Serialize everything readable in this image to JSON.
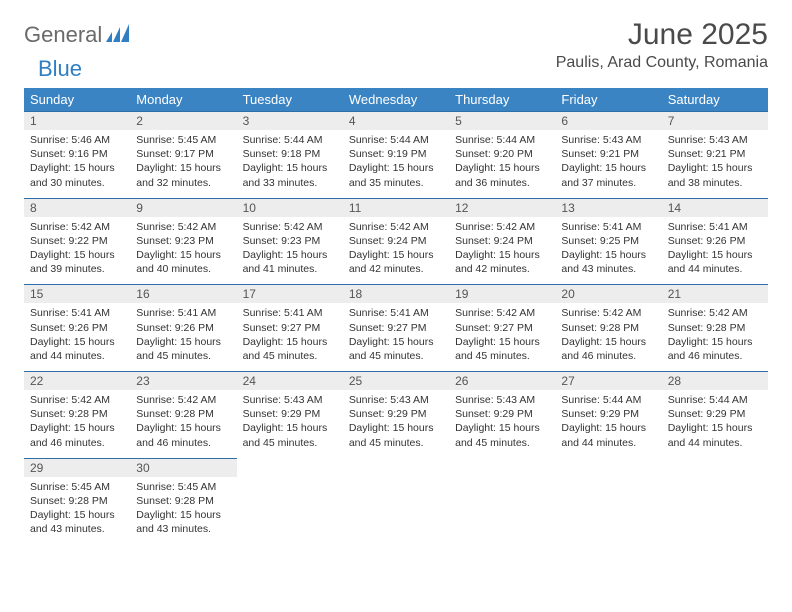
{
  "logo": {
    "text1": "General",
    "text2": "Blue"
  },
  "title": "June 2025",
  "location": "Paulis, Arad County, Romania",
  "day_headers": [
    "Sunday",
    "Monday",
    "Tuesday",
    "Wednesday",
    "Thursday",
    "Friday",
    "Saturday"
  ],
  "header_bg": "#3b84c4",
  "header_fg": "#ffffff",
  "daynum_bg": "#ededed",
  "daynum_border": "#2f6fa8",
  "weeks": [
    [
      {
        "n": "1",
        "sr": "5:46 AM",
        "ss": "9:16 PM",
        "dl": "15 hours and 30 minutes."
      },
      {
        "n": "2",
        "sr": "5:45 AM",
        "ss": "9:17 PM",
        "dl": "15 hours and 32 minutes."
      },
      {
        "n": "3",
        "sr": "5:44 AM",
        "ss": "9:18 PM",
        "dl": "15 hours and 33 minutes."
      },
      {
        "n": "4",
        "sr": "5:44 AM",
        "ss": "9:19 PM",
        "dl": "15 hours and 35 minutes."
      },
      {
        "n": "5",
        "sr": "5:44 AM",
        "ss": "9:20 PM",
        "dl": "15 hours and 36 minutes."
      },
      {
        "n": "6",
        "sr": "5:43 AM",
        "ss": "9:21 PM",
        "dl": "15 hours and 37 minutes."
      },
      {
        "n": "7",
        "sr": "5:43 AM",
        "ss": "9:21 PM",
        "dl": "15 hours and 38 minutes."
      }
    ],
    [
      {
        "n": "8",
        "sr": "5:42 AM",
        "ss": "9:22 PM",
        "dl": "15 hours and 39 minutes."
      },
      {
        "n": "9",
        "sr": "5:42 AM",
        "ss": "9:23 PM",
        "dl": "15 hours and 40 minutes."
      },
      {
        "n": "10",
        "sr": "5:42 AM",
        "ss": "9:23 PM",
        "dl": "15 hours and 41 minutes."
      },
      {
        "n": "11",
        "sr": "5:42 AM",
        "ss": "9:24 PM",
        "dl": "15 hours and 42 minutes."
      },
      {
        "n": "12",
        "sr": "5:42 AM",
        "ss": "9:24 PM",
        "dl": "15 hours and 42 minutes."
      },
      {
        "n": "13",
        "sr": "5:41 AM",
        "ss": "9:25 PM",
        "dl": "15 hours and 43 minutes."
      },
      {
        "n": "14",
        "sr": "5:41 AM",
        "ss": "9:26 PM",
        "dl": "15 hours and 44 minutes."
      }
    ],
    [
      {
        "n": "15",
        "sr": "5:41 AM",
        "ss": "9:26 PM",
        "dl": "15 hours and 44 minutes."
      },
      {
        "n": "16",
        "sr": "5:41 AM",
        "ss": "9:26 PM",
        "dl": "15 hours and 45 minutes."
      },
      {
        "n": "17",
        "sr": "5:41 AM",
        "ss": "9:27 PM",
        "dl": "15 hours and 45 minutes."
      },
      {
        "n": "18",
        "sr": "5:41 AM",
        "ss": "9:27 PM",
        "dl": "15 hours and 45 minutes."
      },
      {
        "n": "19",
        "sr": "5:42 AM",
        "ss": "9:27 PM",
        "dl": "15 hours and 45 minutes."
      },
      {
        "n": "20",
        "sr": "5:42 AM",
        "ss": "9:28 PM",
        "dl": "15 hours and 46 minutes."
      },
      {
        "n": "21",
        "sr": "5:42 AM",
        "ss": "9:28 PM",
        "dl": "15 hours and 46 minutes."
      }
    ],
    [
      {
        "n": "22",
        "sr": "5:42 AM",
        "ss": "9:28 PM",
        "dl": "15 hours and 46 minutes."
      },
      {
        "n": "23",
        "sr": "5:42 AM",
        "ss": "9:28 PM",
        "dl": "15 hours and 46 minutes."
      },
      {
        "n": "24",
        "sr": "5:43 AM",
        "ss": "9:29 PM",
        "dl": "15 hours and 45 minutes."
      },
      {
        "n": "25",
        "sr": "5:43 AM",
        "ss": "9:29 PM",
        "dl": "15 hours and 45 minutes."
      },
      {
        "n": "26",
        "sr": "5:43 AM",
        "ss": "9:29 PM",
        "dl": "15 hours and 45 minutes."
      },
      {
        "n": "27",
        "sr": "5:44 AM",
        "ss": "9:29 PM",
        "dl": "15 hours and 44 minutes."
      },
      {
        "n": "28",
        "sr": "5:44 AM",
        "ss": "9:29 PM",
        "dl": "15 hours and 44 minutes."
      }
    ],
    [
      {
        "n": "29",
        "sr": "5:45 AM",
        "ss": "9:28 PM",
        "dl": "15 hours and 43 minutes."
      },
      {
        "n": "30",
        "sr": "5:45 AM",
        "ss": "9:28 PM",
        "dl": "15 hours and 43 minutes."
      },
      null,
      null,
      null,
      null,
      null
    ]
  ],
  "labels": {
    "sunrise": "Sunrise: ",
    "sunset": "Sunset: ",
    "daylight": "Daylight: "
  }
}
